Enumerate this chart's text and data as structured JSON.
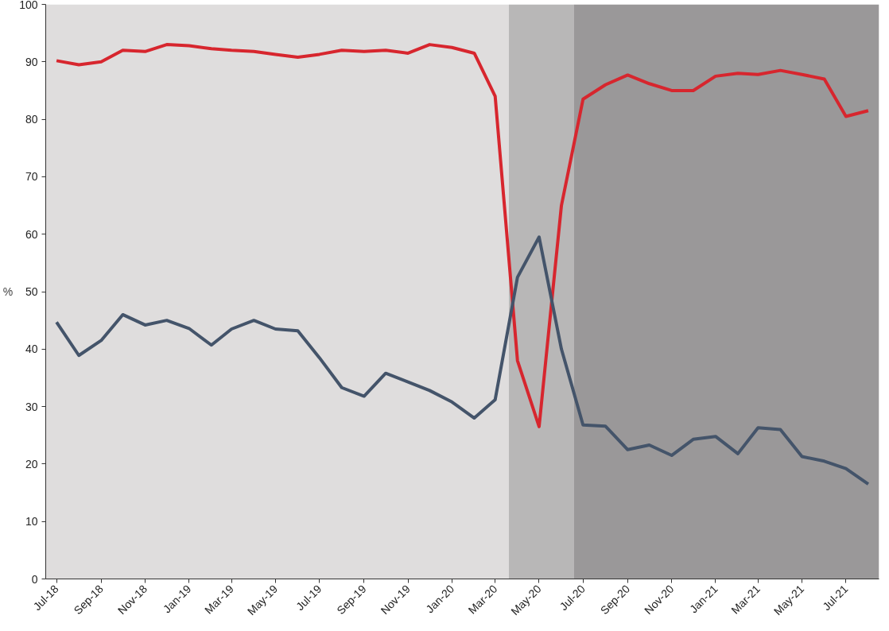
{
  "chart_data": {
    "type": "line",
    "ylabel": "%",
    "x": [
      "2018-07",
      "2018-08",
      "2018-09",
      "2018-10",
      "2018-11",
      "2018-12",
      "2019-01",
      "2019-02",
      "2019-03",
      "2019-04",
      "2019-05",
      "2019-06",
      "2019-07",
      "2019-08",
      "2019-09",
      "2019-10",
      "2019-11",
      "2019-12",
      "2020-01",
      "2020-02",
      "2020-03",
      "2020-04",
      "2020-05",
      "2020-06",
      "2020-07",
      "2020-08",
      "2020-09",
      "2020-10",
      "2020-11",
      "2020-12",
      "2021-01",
      "2021-02",
      "2021-03",
      "2021-04",
      "2021-05",
      "2021-06",
      "2021-07",
      "2021-08"
    ],
    "series": [
      {
        "color": "#d7262e",
        "values": [
          90.2,
          89.5,
          90,
          92,
          91.8,
          93,
          92.8,
          92.3,
          92,
          91.8,
          91.3,
          90.8,
          91.3,
          92,
          91.8,
          92,
          91.5,
          93,
          92.5,
          91.5,
          84,
          38,
          26.5,
          65,
          83.5,
          86,
          87.7,
          86.2,
          85,
          85,
          87.5,
          88,
          87.8,
          88.5,
          87.8,
          87,
          80.5,
          81.5
        ]
      },
      {
        "color": "#44546a",
        "values": [
          44.7,
          38.9,
          41.5,
          46,
          44.2,
          45,
          43.6,
          40.7,
          43.5,
          45,
          43.5,
          43.2,
          38.5,
          33.3,
          31.8,
          35.8,
          34.3,
          32.8,
          30.8,
          28,
          31.2,
          52.5,
          59.5,
          40,
          26.8,
          26.6,
          22.5,
          23.3,
          21.5,
          24.3,
          24.8,
          21.8,
          26.3,
          26,
          21.3,
          20.5,
          19.2,
          16.5
        ]
      }
    ],
    "xlim": [
      "2018-06-16",
      "2021-08-16"
    ],
    "xticks": [
      {
        "value": "2018-07",
        "label": "Jul-18"
      },
      {
        "value": "2018-09",
        "label": "Sep-18"
      },
      {
        "value": "2018-11",
        "label": "Nov-18"
      },
      {
        "value": "2019-01",
        "label": "Jan-19"
      },
      {
        "value": "2019-03",
        "label": "Mar-19"
      },
      {
        "value": "2019-05",
        "label": "May-19"
      },
      {
        "value": "2019-07",
        "label": "Jul-19"
      },
      {
        "value": "2019-09",
        "label": "Sep-19"
      },
      {
        "value": "2019-11",
        "label": "Nov-19"
      },
      {
        "value": "2020-01",
        "label": "Jan-20"
      },
      {
        "value": "2020-03",
        "label": "Mar-20"
      },
      {
        "value": "2020-05",
        "label": "May-20"
      },
      {
        "value": "2020-07",
        "label": "Jul-20"
      },
      {
        "value": "2020-09",
        "label": "Sep-20"
      },
      {
        "value": "2020-11",
        "label": "Nov-20"
      },
      {
        "value": "2021-01",
        "label": "Jan-21"
      },
      {
        "value": "2021-03",
        "label": "Mar-21"
      },
      {
        "value": "2021-05",
        "label": "May-21"
      },
      {
        "value": "2021-07",
        "label": "Jul-21"
      }
    ],
    "ylim": [
      0,
      100
    ],
    "yticks": [
      0,
      10,
      20,
      30,
      40,
      50,
      60,
      70,
      80,
      90,
      100
    ],
    "bands": [
      {
        "axis": "x",
        "from": "2018-06-16",
        "to": "2020-03-20",
        "color": "#dfdddd"
      },
      {
        "axis": "x",
        "from": "2020-03-20",
        "to": "2020-06-18",
        "color": "#b8b7b7"
      },
      {
        "axis": "x",
        "from": "2020-06-18",
        "to": "2021-08-16",
        "color": "#9a9899"
      }
    ],
    "grid": false,
    "marker": "none",
    "line_style": "solid"
  }
}
